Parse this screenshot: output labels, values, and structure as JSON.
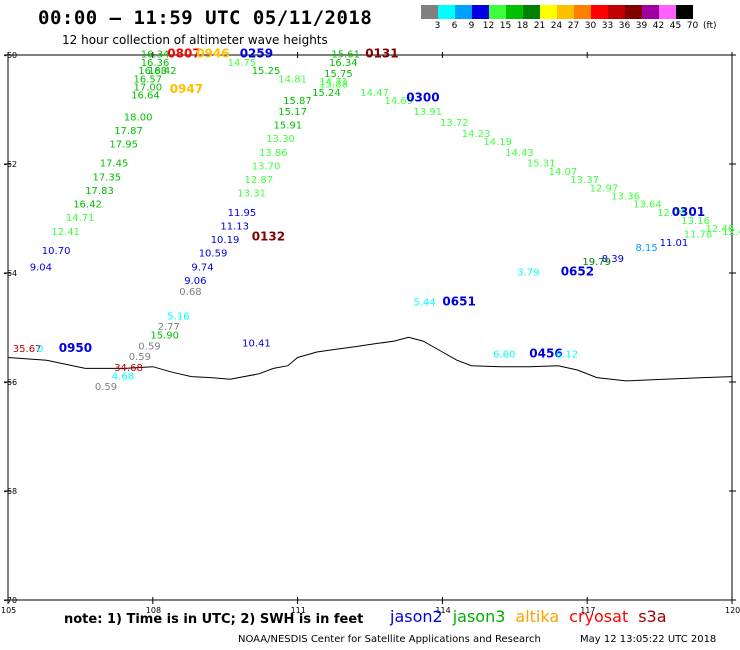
{
  "header": {
    "title": "00:00 – 11:59 UTC 05/11/2018",
    "subtitle": "12 hour collection of altimeter wave heights"
  },
  "legend": {
    "unit": "(ft)",
    "bins": [
      {
        "label": "3",
        "color": "#808080"
      },
      {
        "label": "6",
        "color": "#00ffff"
      },
      {
        "label": "9",
        "color": "#00a0ff"
      },
      {
        "label": "12",
        "color": "#0000e0"
      },
      {
        "label": "15",
        "color": "#40ff40"
      },
      {
        "label": "18",
        "color": "#00c000"
      },
      {
        "label": "21",
        "color": "#008000"
      },
      {
        "label": "24",
        "color": "#ffff00"
      },
      {
        "label": "27",
        "color": "#ffc000"
      },
      {
        "label": "30",
        "color": "#ff8000"
      },
      {
        "label": "33",
        "color": "#ff0000"
      },
      {
        "label": "36",
        "color": "#c00000"
      },
      {
        "label": "39",
        "color": "#800000"
      },
      {
        "label": "42",
        "color": "#a000a0"
      },
      {
        "label": "45",
        "color": "#ff60ff"
      },
      {
        "label": "70",
        "color": "#000000"
      }
    ]
  },
  "map": {
    "lon_min": 105,
    "lon_max": 120,
    "lat_top": -60,
    "lat_bottom": -70,
    "lon_ticks": [
      "105",
      "108",
      "111",
      "114",
      "117",
      "120"
    ],
    "lat_ticks": [
      "-60",
      "-62",
      "-64",
      "-66",
      "-68",
      "-70"
    ],
    "coast": [
      [
        105.0,
        -65.55
      ],
      [
        105.8,
        -65.6
      ],
      [
        106.6,
        -65.75
      ],
      [
        107.4,
        -65.75
      ],
      [
        108.0,
        -65.72
      ],
      [
        108.4,
        -65.82
      ],
      [
        108.8,
        -65.9
      ],
      [
        109.2,
        -65.92
      ],
      [
        109.6,
        -65.95
      ],
      [
        110.2,
        -65.85
      ],
      [
        110.5,
        -65.75
      ],
      [
        110.8,
        -65.7
      ],
      [
        111.0,
        -65.55
      ],
      [
        111.4,
        -65.45
      ],
      [
        111.8,
        -65.4
      ],
      [
        112.2,
        -65.35
      ],
      [
        112.6,
        -65.3
      ],
      [
        113.0,
        -65.25
      ],
      [
        113.3,
        -65.18
      ],
      [
        113.6,
        -65.25
      ],
      [
        114.0,
        -65.45
      ],
      [
        114.3,
        -65.6
      ],
      [
        114.6,
        -65.7
      ],
      [
        115.2,
        -65.72
      ],
      [
        115.8,
        -65.72
      ],
      [
        116.4,
        -65.7
      ],
      [
        116.8,
        -65.78
      ],
      [
        117.2,
        -65.92
      ],
      [
        117.8,
        -65.98
      ],
      [
        118.6,
        -65.95
      ],
      [
        119.4,
        -65.92
      ],
      [
        120.0,
        -65.9
      ]
    ]
  },
  "tracks": [
    {
      "name": "jason3-descending-west",
      "labels": [
        {
          "t": "16.34",
          "lon": 107.75,
          "lat": -60.05,
          "c": "#00c000"
        },
        {
          "t": "16.36",
          "lon": 107.75,
          "lat": -60.2,
          "c": "#00c000"
        },
        {
          "t": "16.88",
          "lon": 107.7,
          "lat": -60.35,
          "c": "#00c000"
        },
        {
          "t": "16.42",
          "lon": 107.9,
          "lat": -60.35,
          "c": "#00c000"
        },
        {
          "t": "16.57",
          "lon": 107.6,
          "lat": -60.5,
          "c": "#00c000"
        },
        {
          "t": "17.00",
          "lon": 107.6,
          "lat": -60.65,
          "c": "#00c000"
        },
        {
          "t": "16.64",
          "lon": 107.55,
          "lat": -60.8,
          "c": "#00c000"
        },
        {
          "t": "18.00",
          "lon": 107.4,
          "lat": -61.2,
          "c": "#00c000"
        },
        {
          "t": "17.87",
          "lon": 107.2,
          "lat": -61.45,
          "c": "#00c000"
        },
        {
          "t": "17.95",
          "lon": 107.1,
          "lat": -61.7,
          "c": "#00c000"
        },
        {
          "t": "17.45",
          "lon": 106.9,
          "lat": -62.05,
          "c": "#00c000"
        },
        {
          "t": "17.35",
          "lon": 106.75,
          "lat": -62.3,
          "c": "#00c000"
        },
        {
          "t": "17.83",
          "lon": 106.6,
          "lat": -62.55,
          "c": "#00c000"
        },
        {
          "t": "16.42",
          "lon": 106.35,
          "lat": -62.8,
          "c": "#00c000"
        },
        {
          "t": "14.71",
          "lon": 106.2,
          "lat": -63.05,
          "c": "#40ff40"
        },
        {
          "t": "12.41",
          "lon": 105.9,
          "lat": -63.3,
          "c": "#40ff40"
        }
      ]
    },
    {
      "name": "jason2-west",
      "labels": [
        {
          "t": "10.70",
          "lon": 105.7,
          "lat": -63.65,
          "c": "#0000e0"
        },
        {
          "t": "9.04",
          "lon": 105.45,
          "lat": -63.95,
          "c": "#0000e0"
        }
      ]
    },
    {
      "name": "times-top",
      "labels": [
        {
          "t": "0807",
          "lon": 108.3,
          "lat": -60.05,
          "c": "#ff0000",
          "bold": true
        },
        {
          "t": "0946",
          "lon": 108.9,
          "lat": -60.05,
          "c": "#ffc000",
          "bold": true
        },
        {
          "t": "0259",
          "lon": 109.8,
          "lat": -60.05,
          "c": "#0000e0",
          "bold": true
        },
        {
          "t": "0947",
          "lon": 108.35,
          "lat": -60.7,
          "c": "#ffc000",
          "bold": true
        },
        {
          "t": "0131",
          "lon": 112.4,
          "lat": -60.05,
          "c": "#800000",
          "bold": true
        }
      ]
    },
    {
      "name": "jason3-north-center",
      "labels": [
        {
          "t": "14.75",
          "lon": 109.55,
          "lat": -60.2,
          "c": "#40ff40"
        },
        {
          "t": "15.25",
          "lon": 110.05,
          "lat": -60.35,
          "c": "#00c000"
        },
        {
          "t": "14.81",
          "lon": 110.6,
          "lat": -60.5,
          "c": "#40ff40"
        },
        {
          "t": "15.61",
          "lon": 111.7,
          "lat": -60.05,
          "c": "#00c000"
        },
        {
          "t": "16.34",
          "lon": 111.65,
          "lat": -60.2,
          "c": "#00c000"
        },
        {
          "t": "15.75",
          "lon": 111.55,
          "lat": -60.4,
          "c": "#00c000"
        },
        {
          "t": "15.88",
          "lon": 111.45,
          "lat": -60.6,
          "c": "#40ff40"
        },
        {
          "t": "15.24",
          "lon": 111.3,
          "lat": -60.75,
          "c": "#00c000"
        },
        {
          "t": "15.87",
          "lon": 110.7,
          "lat": -60.9,
          "c": "#00c000"
        },
        {
          "t": "15.17",
          "lon": 110.6,
          "lat": -61.1,
          "c": "#00c000"
        },
        {
          "t": "15.91",
          "lon": 110.5,
          "lat": -61.35,
          "c": "#00c000"
        },
        {
          "t": "13.30",
          "lon": 110.35,
          "lat": -61.6,
          "c": "#40ff40"
        },
        {
          "t": "13.86",
          "lon": 110.2,
          "lat": -61.85,
          "c": "#40ff40"
        },
        {
          "t": "13.70",
          "lon": 110.05,
          "lat": -62.1,
          "c": "#40ff40"
        },
        {
          "t": "12.87",
          "lon": 109.9,
          "lat": -62.35,
          "c": "#40ff40"
        },
        {
          "t": "13.31",
          "lon": 109.75,
          "lat": -62.6,
          "c": "#40ff40"
        }
      ]
    },
    {
      "name": "jason2-center",
      "labels": [
        {
          "t": "11.95",
          "lon": 109.55,
          "lat": -62.95,
          "c": "#0000e0"
        },
        {
          "t": "11.13",
          "lon": 109.4,
          "lat": -63.2,
          "c": "#0000e0"
        },
        {
          "t": "10.19",
          "lon": 109.2,
          "lat": -63.45,
          "c": "#0000e0"
        },
        {
          "t": "10.59",
          "lon": 108.95,
          "lat": -63.7,
          "c": "#0000e0"
        },
        {
          "t": "9.74",
          "lon": 108.8,
          "lat": -63.95,
          "c": "#0000e0"
        },
        {
          "t": "9.06",
          "lon": 108.65,
          "lat": -64.2,
          "c": "#0000e0"
        },
        {
          "t": "0132",
          "lon": 110.05,
          "lat": -63.4,
          "c": "#800000",
          "bold": true
        }
      ]
    },
    {
      "name": "grey-center",
      "labels": [
        {
          "t": "0.68",
          "lon": 108.55,
          "lat": -64.4,
          "c": "#808080"
        },
        {
          "t": "5.16",
          "lon": 108.3,
          "lat": -64.85,
          "c": "#00ffff"
        },
        {
          "t": "2.77",
          "lon": 108.1,
          "lat": -65.05,
          "c": "#808080"
        },
        {
          "t": "15.90",
          "lon": 107.95,
          "lat": -65.2,
          "c": "#00c000"
        },
        {
          "t": "0.59",
          "lon": 107.7,
          "lat": -65.4,
          "c": "#808080"
        },
        {
          "t": "0.59",
          "lon": 107.5,
          "lat": -65.6,
          "c": "#808080"
        },
        {
          "t": "34.68",
          "lon": 107.2,
          "lat": -65.8,
          "c": "#c00000"
        },
        {
          "t": "4.68",
          "lon": 107.15,
          "lat": -65.95,
          "c": "#00ffff"
        },
        {
          "t": "0.59",
          "lon": 106.8,
          "lat": -66.15,
          "c": "#808080"
        }
      ]
    },
    {
      "name": "west-cluster",
      "labels": [
        {
          "t": "35.67",
          "lon": 105.1,
          "lat": -65.45,
          "c": "#c00000"
        },
        {
          "t": "0",
          "lon": 105.6,
          "lat": -65.45,
          "c": "#00ffff"
        },
        {
          "t": "0950",
          "lon": 106.05,
          "lat": -65.45,
          "c": "#0000e0",
          "bold": true
        }
      ]
    },
    {
      "name": "jason2-south",
      "labels": [
        {
          "t": "10.41",
          "lon": 109.85,
          "lat": -65.35,
          "c": "#0000e0"
        }
      ]
    },
    {
      "name": "jason3-east-diagonal",
      "labels": [
        {
          "t": "14.71",
          "lon": 111.45,
          "lat": -60.55,
          "c": "#40ff40"
        },
        {
          "t": "14.47",
          "lon": 112.3,
          "lat": -60.75,
          "c": "#40ff40"
        },
        {
          "t": "14.69",
          "lon": 112.8,
          "lat": -60.9,
          "c": "#40ff40"
        },
        {
          "t": "13.91",
          "lon": 113.4,
          "lat": -61.1,
          "c": "#40ff40"
        },
        {
          "t": "13.72",
          "lon": 113.95,
          "lat": -61.3,
          "c": "#40ff40"
        },
        {
          "t": "14.23",
          "lon": 114.4,
          "lat": -61.5,
          "c": "#40ff40"
        },
        {
          "t": "14.19",
          "lon": 114.85,
          "lat": -61.65,
          "c": "#40ff40"
        },
        {
          "t": "14.43",
          "lon": 115.3,
          "lat": -61.85,
          "c": "#40ff40"
        },
        {
          "t": "15.31",
          "lon": 115.75,
          "lat": -62.05,
          "c": "#40ff40"
        },
        {
          "t": "14.07",
          "lon": 116.2,
          "lat": -62.2,
          "c": "#40ff40"
        },
        {
          "t": "13.37",
          "lon": 116.65,
          "lat": -62.35,
          "c": "#40ff40"
        },
        {
          "t": "12.97",
          "lon": 117.05,
          "lat": -62.5,
          "c": "#40ff40"
        },
        {
          "t": "13.36",
          "lon": 117.5,
          "lat": -62.65,
          "c": "#40ff40"
        },
        {
          "t": "13.64",
          "lon": 117.95,
          "lat": -62.8,
          "c": "#40ff40"
        },
        {
          "t": "12.78",
          "lon": 118.45,
          "lat": -62.95,
          "c": "#40ff40"
        },
        {
          "t": "13.16",
          "lon": 118.95,
          "lat": -63.1,
          "c": "#40ff40"
        },
        {
          "t": "12.46",
          "lon": 119.45,
          "lat": -63.25,
          "c": "#40ff40"
        },
        {
          "t": "11.78",
          "lon": 119.0,
          "lat": -63.35,
          "c": "#40ff40"
        },
        {
          "t": "12.4",
          "lon": 119.8,
          "lat": -63.3,
          "c": "#40ff40"
        }
      ]
    },
    {
      "name": "times-east",
      "labels": [
        {
          "t": "0300",
          "lon": 113.25,
          "lat": -60.85,
          "c": "#0000e0",
          "bold": true
        },
        {
          "t": "0301",
          "lon": 118.75,
          "lat": -62.95,
          "c": "#0000e0",
          "bold": true
        },
        {
          "t": "0651",
          "lon": 114.0,
          "lat": -64.6,
          "c": "#0000e0",
          "bold": true
        },
        {
          "t": "0652",
          "lon": 116.45,
          "lat": -64.05,
          "c": "#0000e0",
          "bold": true
        },
        {
          "t": "0456",
          "lon": 115.8,
          "lat": -65.55,
          "c": "#0000e0",
          "bold": true
        }
      ]
    },
    {
      "name": "east-misc",
      "labels": [
        {
          "t": "11.01",
          "lon": 118.5,
          "lat": -63.5,
          "c": "#0000e0"
        },
        {
          "t": "8.15",
          "lon": 118.0,
          "lat": -63.6,
          "c": "#00a0ff"
        },
        {
          "t": "8.39",
          "lon": 117.3,
          "lat": -63.8,
          "c": "#0000e0"
        },
        {
          "t": "19.79",
          "lon": 116.9,
          "lat": -63.85,
          "c": "#008000"
        },
        {
          "t": "3.79",
          "lon": 115.55,
          "lat": -64.05,
          "c": "#00ffff"
        },
        {
          "t": "5.44",
          "lon": 113.4,
          "lat": -64.6,
          "c": "#00ffff"
        },
        {
          "t": "6.60",
          "lon": 115.05,
          "lat": -65.55,
          "c": "#00ffff"
        },
        {
          "t": "6.12",
          "lon": 116.35,
          "lat": -65.55,
          "c": "#00ffff"
        }
      ]
    }
  ],
  "footer": {
    "note": "note:  1) Time is in UTC;  2) SWH is in feet",
    "satellites": [
      {
        "name": "jason2",
        "color": "#0000e0"
      },
      {
        "name": "jason3",
        "color": "#00b000"
      },
      {
        "name": "altika",
        "color": "#ffa000"
      },
      {
        "name": "cryosat",
        "color": "#ff0000"
      },
      {
        "name": "s3a",
        "color": "#a00000"
      }
    ],
    "credit": "NOAA/NESDIS Center for Satellite Applications and Research",
    "timestamp": "May 12 13:05:22 UTC 2018"
  }
}
